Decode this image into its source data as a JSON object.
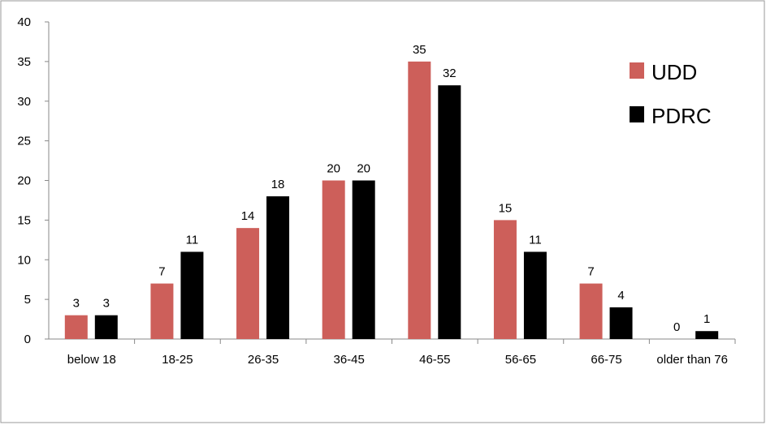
{
  "chart_data": {
    "type": "bar",
    "categories": [
      "below 18",
      "18-25",
      "26-35",
      "36-45",
      "46-55",
      "56-65",
      "66-75",
      "older than 76"
    ],
    "series": [
      {
        "name": "UDD",
        "color": "#cd5f5a",
        "values": [
          3,
          7,
          14,
          20,
          35,
          15,
          7,
          0
        ]
      },
      {
        "name": "PDRC",
        "color": "#000000",
        "values": [
          3,
          11,
          18,
          20,
          32,
          11,
          4,
          1
        ]
      }
    ],
    "ylim": [
      0,
      40
    ],
    "yticks": [
      0,
      5,
      10,
      15,
      20,
      25,
      30,
      35,
      40
    ],
    "legend": "right"
  }
}
